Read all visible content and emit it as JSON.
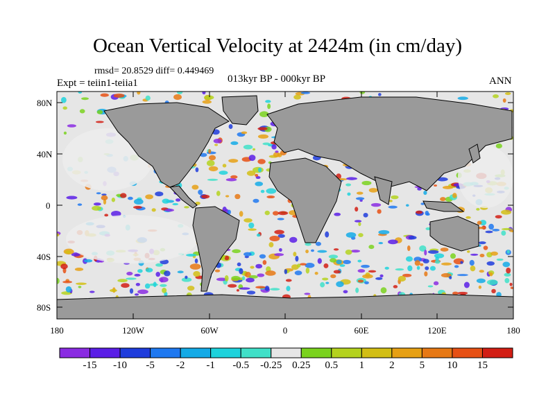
{
  "title": "Ocean Vertical Velocity at 2424m (in cm/day)",
  "stats_line": "rmsd= 20.8529 diff= 0.449469",
  "experiment": "Expt = teiin1-teiia1",
  "period": "013kyr BP - 000kyr BP",
  "season": "ANN",
  "lat_labels": [
    "80N",
    "40N",
    "0",
    "40S",
    "80S"
  ],
  "lon_labels": [
    "180",
    "120W",
    "60W",
    "0",
    "60E",
    "120E",
    "180"
  ],
  "colorbar": {
    "labels": [
      "-15",
      "-10",
      "-5",
      "-2",
      "-1",
      "-0.5",
      "-0.25",
      "0.25",
      "0.5",
      "1",
      "2",
      "5",
      "10",
      "15"
    ],
    "colors": [
      "#8a2be2",
      "#5a1ee6",
      "#1e3cdc",
      "#1e78f0",
      "#14aae6",
      "#1ed2dc",
      "#40e0c8",
      "#e6e6e6",
      "#7ad21e",
      "#b4d21e",
      "#d2be14",
      "#e6a014",
      "#e67814",
      "#e65014",
      "#d21e14"
    ]
  },
  "map_colors": {
    "land": "#9a9a9a",
    "coast": "#000000",
    "quiet_ocean": "#e6e6e6"
  }
}
